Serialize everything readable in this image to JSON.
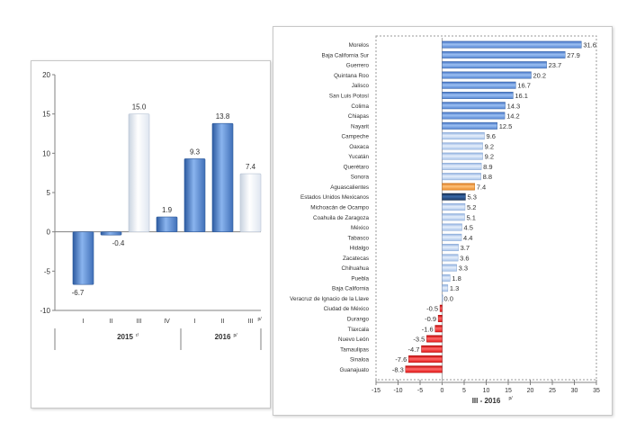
{
  "colors": {
    "blue_dark": "#3f6fb8",
    "blue_mid": "#6f9be0",
    "blue_light": "#c2d6f3",
    "white_bar": "#eef2f8",
    "orange": "#f39b3b",
    "navy": "#1c3a66",
    "red": "#e02020",
    "axis": "#808080",
    "text": "#303030"
  },
  "chart_data": [
    {
      "type": "bar",
      "title": "",
      "categories": [
        "I",
        "II",
        "III",
        "IV",
        "I",
        "II",
        "III"
      ],
      "category_suffix": {
        "2": "p/"
      },
      "values": [
        -6.7,
        -0.4,
        15.0,
        1.9,
        9.3,
        13.8,
        7.4
      ],
      "value_labels": [
        "-6.7",
        "-0.4",
        "15.0",
        "1.9",
        "9.3",
        "13.8",
        "7.4"
      ],
      "bar_styles": [
        "dark",
        "dark",
        "white",
        "dark",
        "dark",
        "dark",
        "white"
      ],
      "groups": [
        {
          "label": "2015",
          "suffix": "r/",
          "span": [
            0,
            3
          ]
        },
        {
          "label": "2016",
          "suffix": "p/",
          "span": [
            4,
            6
          ]
        }
      ],
      "ylim": [
        -10,
        20
      ],
      "yticks": [
        "-10",
        "-5",
        "0",
        "5",
        "10",
        "15",
        "20"
      ],
      "xlabel": "",
      "ylabel": ""
    },
    {
      "type": "bar",
      "orientation": "horizontal",
      "title": "",
      "xlabel": "III - 2016",
      "xlabel_suffix": "p/",
      "xlim": [
        -15,
        35
      ],
      "xticks": [
        "-15",
        "-10",
        "-5",
        "0",
        "5",
        "10",
        "15",
        "20",
        "25",
        "30",
        "35"
      ],
      "categories": [
        "Morelos",
        "Baja California Sur",
        "Guerrero",
        "Quintana Roo",
        "Jalisco",
        "San Luis Potosí",
        "Colima",
        "Chiapas",
        "Nayarit",
        "Campeche",
        "Oaxaca",
        "Yucatán",
        "Querétaro",
        "Sonora",
        "Aguascalientes",
        "Estados Unidos Mexicanos",
        "Michoacán de Ocampo",
        "Coahuila de Zaragoza",
        "México",
        "Tabasco",
        "Hidalgo",
        "Zacatecas",
        "Chihuahua",
        "Puebla",
        "Baja California",
        "Veracruz de Ignacio de la Llave",
        "Ciudad de México",
        "Durango",
        "Tlaxcala",
        "Nuevo León",
        "Tamaulipas",
        "Sinaloa",
        "Guanajuato"
      ],
      "values": [
        31.6,
        27.9,
        23.7,
        20.2,
        16.7,
        16.1,
        14.3,
        14.2,
        12.5,
        9.6,
        9.2,
        9.2,
        8.9,
        8.8,
        7.4,
        5.3,
        5.2,
        5.1,
        4.5,
        4.4,
        3.7,
        3.6,
        3.3,
        1.8,
        1.3,
        0.0,
        -0.5,
        -0.9,
        -1.6,
        -3.5,
        -4.7,
        -7.6,
        -8.3
      ],
      "value_labels": [
        "31.6",
        "27.9",
        "23.7",
        "20.2",
        "16.7",
        "16.1",
        "14.3",
        "14.2",
        "12.5",
        "9.6",
        "9.2",
        "9.2",
        "8.9",
        "8.8",
        "7.4",
        "5.3",
        "5.2",
        "5.1",
        "4.5",
        "4.4",
        "3.7",
        "3.6",
        "3.3",
        "1.8",
        "1.3",
        "0.0",
        "-0.5",
        "-0.9",
        "-1.6",
        "-3.5",
        "-4.7",
        "-7.6",
        "-8.3"
      ],
      "bar_styles": [
        "mid",
        "mid",
        "mid",
        "mid",
        "mid",
        "mid",
        "mid",
        "mid",
        "mid",
        "light",
        "light",
        "light",
        "light",
        "light",
        "orange",
        "navy",
        "light",
        "light",
        "light",
        "light",
        "light",
        "light",
        "light",
        "light",
        "light",
        "light",
        "red",
        "red",
        "red",
        "red",
        "red",
        "red",
        "red"
      ]
    }
  ]
}
